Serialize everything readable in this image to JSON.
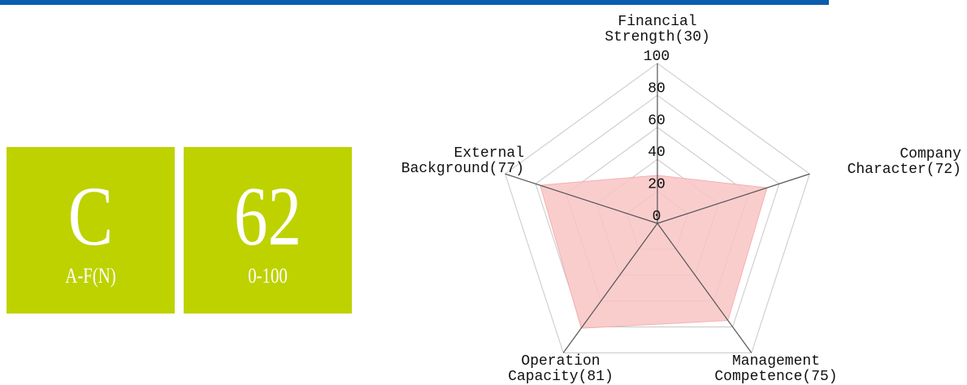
{
  "grade": "C",
  "grade_range": "A-F(N)",
  "score": "62",
  "score_range": "0-100",
  "chart_data": {
    "type": "radar",
    "categories": [
      [
        "Financial",
        "Strength(30)"
      ],
      [
        "Company",
        "Character(72)"
      ],
      [
        "Management",
        "Competence(75)"
      ],
      [
        "Operation",
        "Capacity(81)"
      ],
      [
        "External",
        "Background(77)"
      ]
    ],
    "values": [
      30,
      72,
      75,
      81,
      77
    ],
    "color": "#f9c4c4",
    "rlim": [
      0,
      100
    ],
    "rticks": [
      0,
      20,
      40,
      60,
      80,
      100
    ]
  }
}
